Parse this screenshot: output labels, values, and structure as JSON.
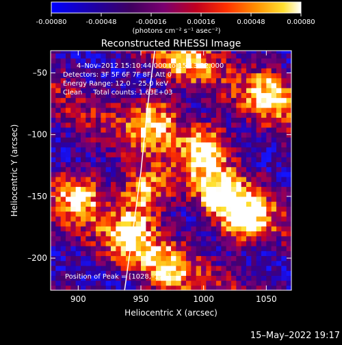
{
  "chart_data": {
    "type": "heatmap",
    "title": "Reconstructed RHESSI Image",
    "xlabel": "Heliocentric X (arcsec)",
    "ylabel": "Heliocentric Y (arcsec)",
    "xlim": [
      878,
      1070
    ],
    "ylim": [
      -226,
      -32
    ],
    "xticks": [
      900,
      950,
      1000,
      1050
    ],
    "yticks": [
      -50,
      -100,
      -150,
      -200
    ],
    "colorbar": {
      "range": [
        -0.0008,
        0.0008
      ],
      "ticks": [
        "-0.00080",
        "-0.00048",
        "-0.00016",
        "0.00016",
        "0.00048",
        "0.00080"
      ],
      "units": "(photons cm⁻² s⁻¹ asec⁻²)",
      "colors": [
        "#0000ff",
        "#1a0090",
        "#3a0070",
        "#6a0080",
        "#a00040",
        "#e00000",
        "#ff5000",
        "#ffa000",
        "#ffee40",
        "#ffffff"
      ]
    },
    "annotations": [
      "4–Nov–2012 15:10:44.000 to 15:13:32.000",
      "Detectors: 3F 5F 6F 7F 8F, Att 0",
      "Energy Range: 12.0 – 25.0 keV",
      "Clean     Total counts: 1.63E+03"
    ],
    "peak_label": "Position of Peak = [1028,–171]",
    "limb_curve": [
      [
        961,
        -32
      ],
      [
        955,
        -80
      ],
      [
        950,
        -130
      ],
      [
        944,
        -175
      ],
      [
        937,
        -226
      ]
    ],
    "bright_regions": [
      {
        "x": 1000,
        "y": -112,
        "level": 1.0
      },
      {
        "x": 960,
        "y": -90,
        "level": 0.85
      },
      {
        "x": 950,
        "y": -150,
        "level": 0.95
      },
      {
        "x": 940,
        "y": -185,
        "level": 0.8
      },
      {
        "x": 1010,
        "y": -150,
        "level": 0.8
      },
      {
        "x": 1030,
        "y": -170,
        "level": 1.0
      },
      {
        "x": 1050,
        "y": -70,
        "level": 0.75
      },
      {
        "x": 900,
        "y": -150,
        "level": 0.75
      },
      {
        "x": 985,
        "y": -40,
        "level": 0.7
      },
      {
        "x": 970,
        "y": -210,
        "level": 0.7
      }
    ]
  },
  "footer": {
    "timestamp": "15–May–2022 19:17"
  }
}
